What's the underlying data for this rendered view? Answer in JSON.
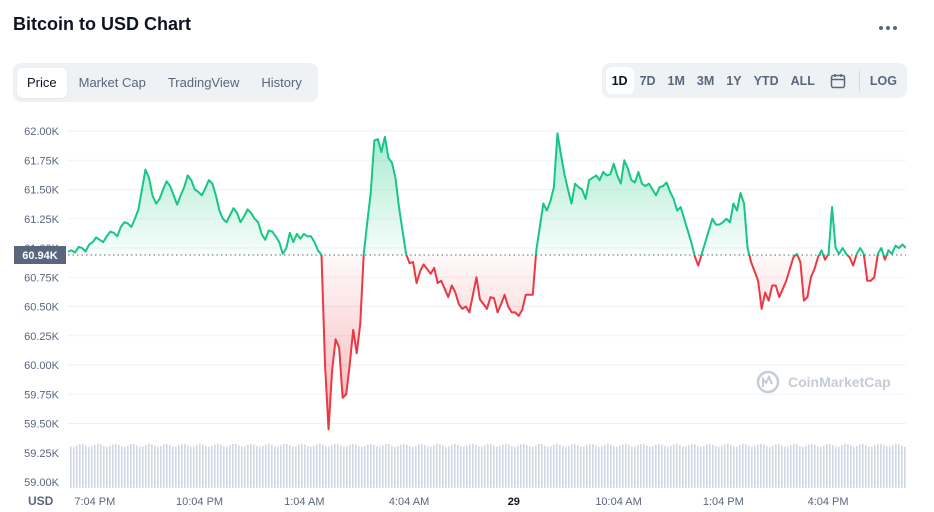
{
  "header": {
    "title": "Bitcoin to USD Chart"
  },
  "tabs": [
    {
      "label": "Price",
      "active": true
    },
    {
      "label": "Market Cap",
      "active": false
    },
    {
      "label": "TradingView",
      "active": false
    },
    {
      "label": "History",
      "active": false
    }
  ],
  "ranges": [
    {
      "label": "1D",
      "active": true
    },
    {
      "label": "7D",
      "active": false
    },
    {
      "label": "1M",
      "active": false
    },
    {
      "label": "3M",
      "active": false
    },
    {
      "label": "1Y",
      "active": false
    },
    {
      "label": "YTD",
      "active": false
    },
    {
      "label": "ALL",
      "active": false
    }
  ],
  "log_label": "LOG",
  "currency_label": "USD",
  "watermark": "CoinMarketCap",
  "colors": {
    "up": "#16c784",
    "down": "#ea3943",
    "grid": "#eff2f5",
    "tag": "#58667e"
  },
  "chart_data": {
    "type": "line",
    "series": [
      {
        "values": [
          60.97,
          60.98,
          60.96,
          61.01,
          61.0,
          60.97,
          61.03,
          61.05,
          61.09,
          61.07,
          61.05,
          61.1,
          61.14,
          61.13,
          61.1,
          61.18,
          61.22,
          61.21,
          61.18,
          61.25,
          61.33,
          61.5,
          61.67,
          61.6,
          61.45,
          61.38,
          61.42,
          61.5,
          61.57,
          61.53,
          61.45,
          61.37,
          61.45,
          61.52,
          61.62,
          61.58,
          61.5,
          61.48,
          61.45,
          61.51,
          61.58,
          61.55,
          61.45,
          61.32,
          61.25,
          61.22,
          61.28,
          61.34,
          61.3,
          61.22,
          61.27,
          61.33,
          61.3,
          61.25,
          61.22,
          61.12,
          61.07,
          61.15,
          61.14,
          61.1,
          61.05,
          60.95,
          61.0,
          61.13,
          61.05,
          61.12,
          61.08,
          61.12,
          61.1,
          61.1,
          61.05,
          60.98,
          60.94,
          60.0,
          59.45,
          59.95,
          60.22,
          60.15,
          59.72,
          59.75,
          60.0,
          60.3,
          60.1,
          60.35,
          60.95,
          61.22,
          61.48,
          61.92,
          61.93,
          61.82,
          61.95,
          61.77,
          61.73,
          61.6,
          61.35,
          61.15,
          60.95,
          60.87,
          60.88,
          60.7,
          60.8,
          60.86,
          60.82,
          60.78,
          60.83,
          60.7,
          60.72,
          60.65,
          60.58,
          60.68,
          60.62,
          60.52,
          60.48,
          60.5,
          60.45,
          60.6,
          60.75,
          60.56,
          60.52,
          60.48,
          60.58,
          60.57,
          60.45,
          60.52,
          60.6,
          60.5,
          60.45,
          60.45,
          60.42,
          60.47,
          60.6,
          60.6,
          60.6,
          60.98,
          61.18,
          61.38,
          61.32,
          61.4,
          61.52,
          61.98,
          61.8,
          61.63,
          61.5,
          61.38,
          61.55,
          61.52,
          61.5,
          61.42,
          61.58,
          61.6,
          61.62,
          61.58,
          61.65,
          61.62,
          61.63,
          61.72,
          61.62,
          61.55,
          61.75,
          61.68,
          61.58,
          61.56,
          61.65,
          61.55,
          61.53,
          61.55,
          61.5,
          61.45,
          61.52,
          61.53,
          61.56,
          61.48,
          61.42,
          61.32,
          61.35,
          61.25,
          61.15,
          61.05,
          60.93,
          60.85,
          60.95,
          61.05,
          61.15,
          61.25,
          61.2,
          61.2,
          61.22,
          61.25,
          61.22,
          61.38,
          61.32,
          61.47,
          61.38,
          61.0,
          60.88,
          60.8,
          60.72,
          60.48,
          60.62,
          60.55,
          60.68,
          60.68,
          60.58,
          60.65,
          60.72,
          60.82,
          60.92,
          60.95,
          60.88,
          60.55,
          60.58,
          60.75,
          60.82,
          60.92,
          60.98,
          60.9,
          60.95,
          61.35,
          61.0,
          60.95,
          61.0,
          60.95,
          60.92,
          60.85,
          60.95,
          61.0,
          60.95,
          60.72,
          60.72,
          60.75,
          60.95,
          61.0,
          60.9,
          60.98,
          60.95,
          61.02,
          61.0,
          61.03,
          61.0
        ]
      }
    ],
    "reference_value": 60.94,
    "current_value_label": "60.94K",
    "y_ticks": [
      "62.00K",
      "61.75K",
      "61.50K",
      "61.25K",
      "61.00K",
      "60.75K",
      "60.50K",
      "60.25K",
      "60.00K",
      "59.75K",
      "59.50K",
      "59.25K",
      "59.00K"
    ],
    "y_tick_values": [
      62.0,
      61.75,
      61.5,
      61.25,
      61.0,
      60.75,
      60.5,
      60.25,
      60.0,
      59.75,
      59.5,
      59.25,
      59.0
    ],
    "ylim": [
      59.0,
      62.0
    ],
    "x_ticks": [
      {
        "label": "7:04 PM",
        "at": 0.032
      },
      {
        "label": "10:04 PM",
        "at": 0.157
      },
      {
        "label": "1:04 AM",
        "at": 0.282
      },
      {
        "label": "4:04 AM",
        "at": 0.407
      },
      {
        "label": "29",
        "at": 0.532,
        "bold": true
      },
      {
        "label": "10:04 AM",
        "at": 0.657
      },
      {
        "label": "1:04 PM",
        "at": 0.782
      },
      {
        "label": "4:04 PM",
        "at": 0.907
      }
    ],
    "volume_level": 0.85,
    "grid": true
  }
}
